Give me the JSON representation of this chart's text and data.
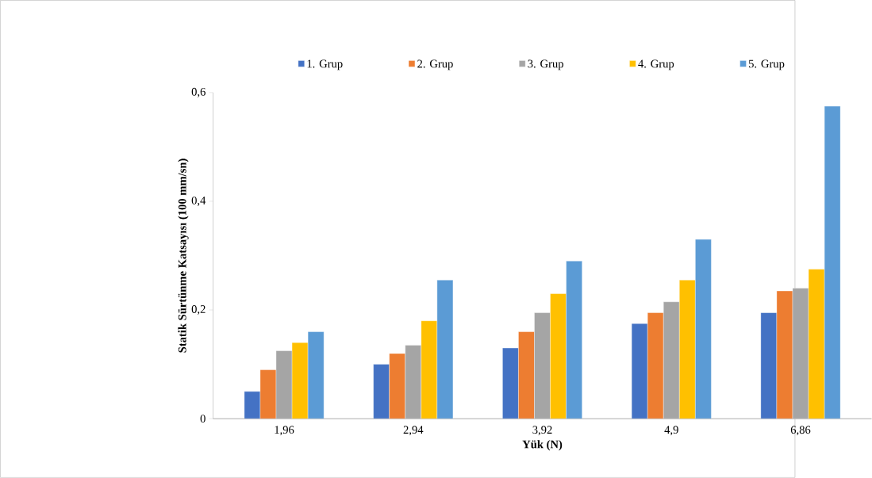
{
  "chart_data": {
    "type": "bar",
    "xlabel": "Yük (N)",
    "ylabel": "Statik Sürtünme Katsayısı (100 mm/sn)",
    "categories": [
      "1,96",
      "2,94",
      "3,92",
      "4,9",
      "6,86"
    ],
    "series": [
      {
        "name": "1. Grup",
        "color": "#4472c4",
        "values": [
          0.05,
          0.1,
          0.13,
          0.175,
          0.195
        ]
      },
      {
        "name": "2. Grup",
        "color": "#ed7d31",
        "values": [
          0.09,
          0.12,
          0.16,
          0.195,
          0.235
        ]
      },
      {
        "name": "3. Grup",
        "color": "#a5a5a5",
        "values": [
          0.125,
          0.135,
          0.195,
          0.215,
          0.24
        ]
      },
      {
        "name": "4. Grup",
        "color": "#ffc000",
        "values": [
          0.14,
          0.18,
          0.23,
          0.255,
          0.275
        ]
      },
      {
        "name": "5. Grup",
        "color": "#5b9bd5",
        "values": [
          0.16,
          0.255,
          0.29,
          0.33,
          0.575
        ]
      }
    ],
    "ylim": [
      0,
      0.6
    ],
    "yticks": [
      {
        "value": 0,
        "label": "0"
      },
      {
        "value": 0.2,
        "label": "0,2"
      },
      {
        "value": 0.4,
        "label": "0,4"
      },
      {
        "value": 0.6,
        "label": "0,6"
      }
    ],
    "legend": "top"
  }
}
